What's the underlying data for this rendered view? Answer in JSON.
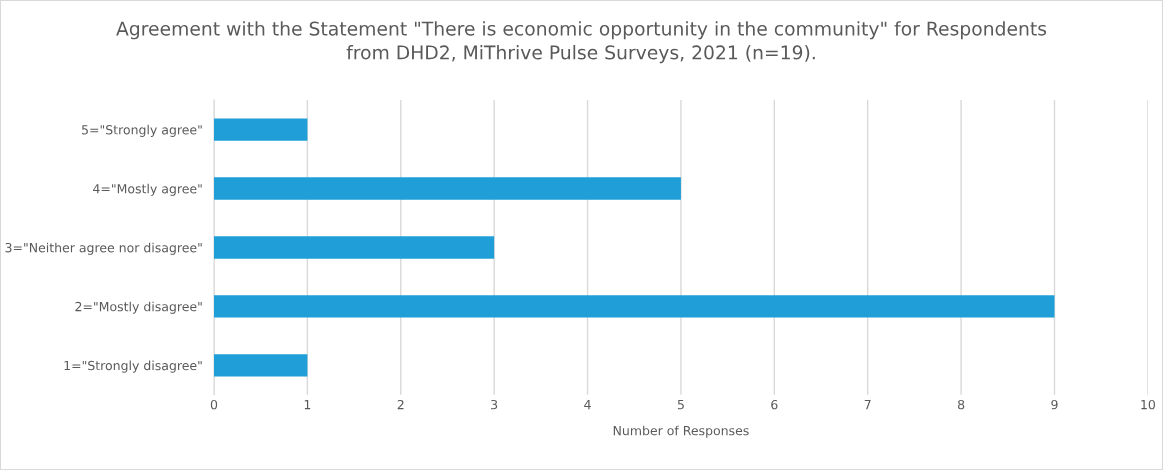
{
  "chart_data": {
    "type": "bar",
    "orientation": "horizontal",
    "title": "Agreement with the Statement \"There is economic opportunity in the community\" for Respondents\nfrom DHD2, MiThrive Pulse Surveys, 2021 (n=19).",
    "xlabel": "Number of Responses",
    "categories": [
      "5=\"Strongly agree\"",
      "4=\"Mostly agree\"",
      "3=\"Neither agree nor disagree\"",
      "2=\"Mostly disagree\"",
      "1=\"Strongly disagree\""
    ],
    "values": [
      1,
      5,
      3,
      9,
      1
    ],
    "color": "#1f9ed8",
    "xlim": [
      0,
      10
    ],
    "xticks": [
      0,
      1,
      2,
      3,
      4,
      5,
      6,
      7,
      8,
      9,
      10
    ],
    "grid": "x"
  }
}
